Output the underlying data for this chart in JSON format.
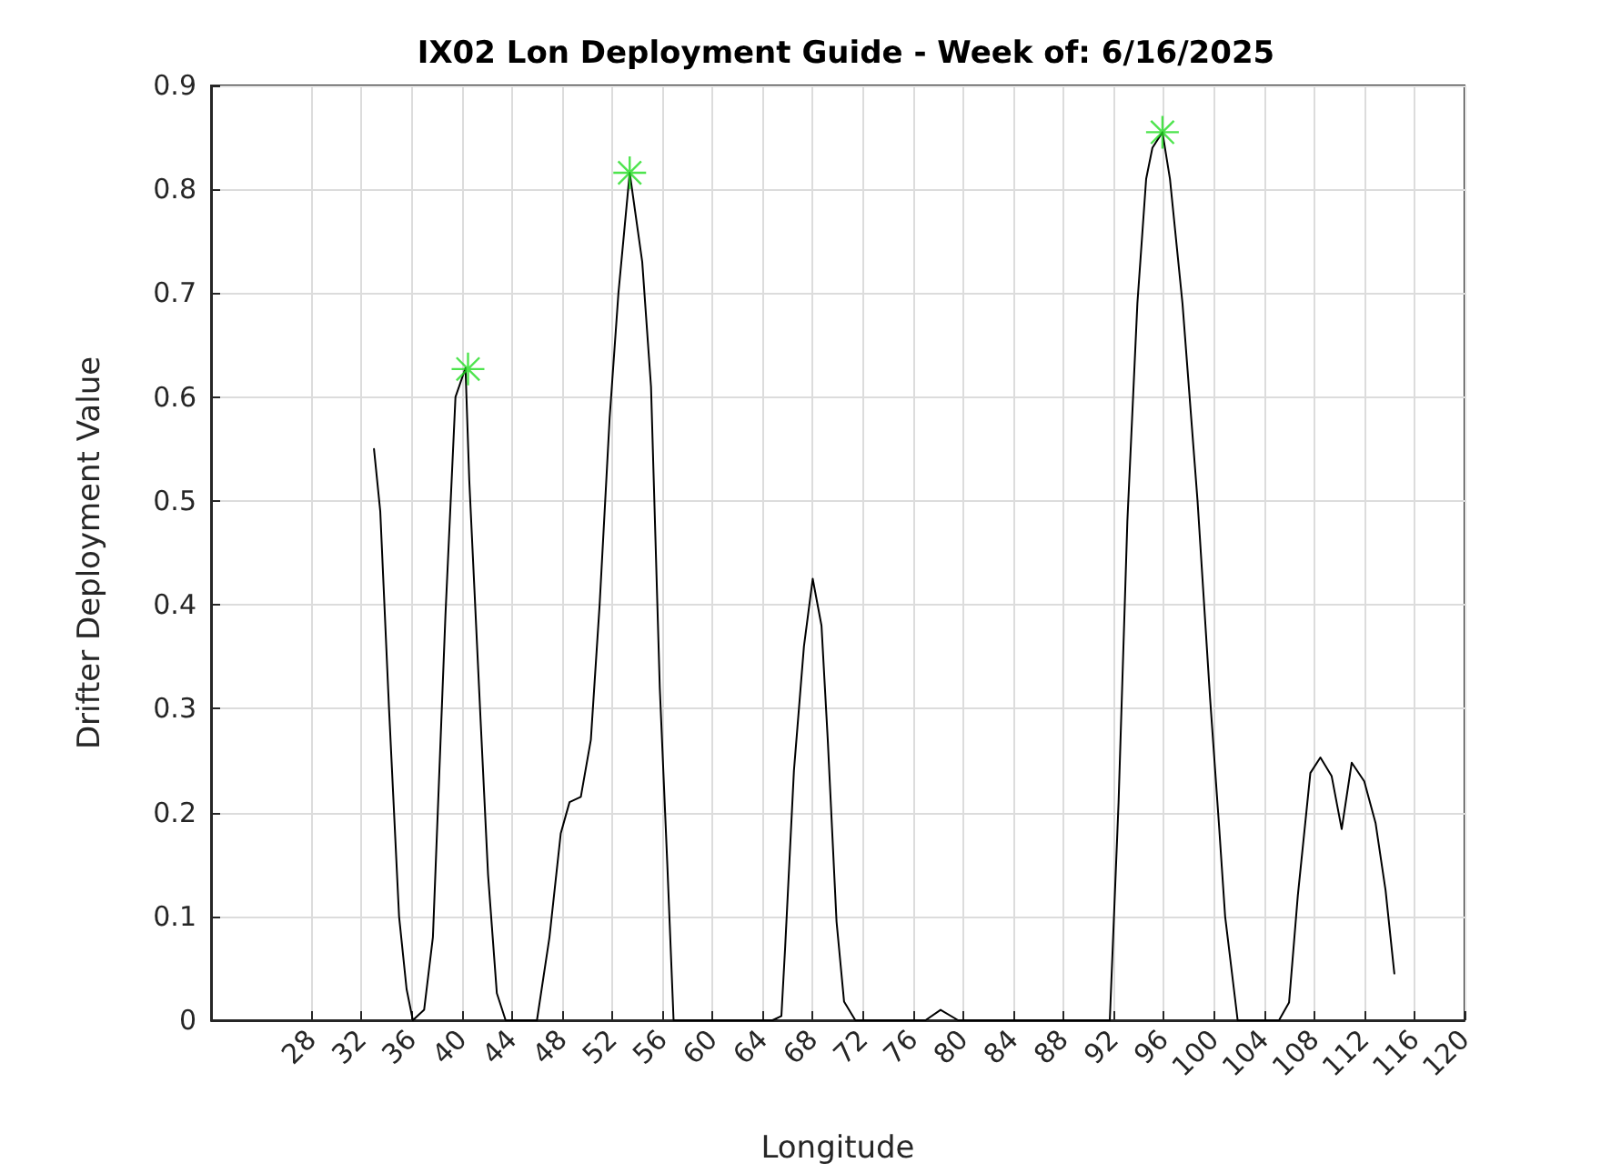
{
  "chart_data": {
    "type": "line",
    "title": "IX02 Lon Deployment Guide - Week of: 6/16/2025",
    "xlabel": "Longitude",
    "ylabel": "Drifter Deployment Value",
    "xlim": [
      20,
      120
    ],
    "xticks": [
      28,
      32,
      36,
      40,
      44,
      48,
      52,
      56,
      60,
      64,
      68,
      72,
      76,
      80,
      84,
      88,
      92,
      96,
      100,
      104,
      108,
      112,
      116,
      120
    ],
    "ylim": [
      0,
      0.9
    ],
    "yticks": [
      0,
      0.1,
      0.2,
      0.3,
      0.4,
      0.5,
      0.6,
      0.7,
      0.8,
      0.9
    ],
    "grid": true,
    "series": [
      {
        "color": "#000000",
        "marker": "none",
        "x": [
          33.0,
          33.5,
          34.2,
          35.0,
          35.6,
          36.1,
          37.0,
          37.7,
          38.7,
          39.5,
          40.3,
          40.6,
          41.5,
          42.1,
          42.8,
          43.5,
          46.0,
          47.0,
          47.9,
          48.6,
          49.5,
          50.3,
          51.0,
          51.8,
          52.5,
          53.4,
          54.4,
          55.1,
          55.8,
          56.4,
          56.9,
          64.8,
          65.5,
          65.8,
          66.5,
          67.3,
          68.0,
          68.7,
          69.2,
          69.9,
          70.5,
          71.4,
          77.0,
          78.2,
          79.6,
          91.7,
          92.4,
          93.1,
          93.9,
          94.6,
          95.1,
          95.9,
          96.5,
          97.5,
          98.7,
          99.7,
          100.4,
          100.9,
          101.9,
          105.2,
          106.0,
          106.7,
          107.7,
          108.5,
          109.4,
          110.2,
          111.0,
          112.0,
          112.9,
          113.7,
          114.4
        ],
        "values": [
          0.55,
          0.49,
          0.3,
          0.1,
          0.03,
          0,
          0.01,
          0.08,
          0.39,
          0.6,
          0.628,
          0.52,
          0.29,
          0.14,
          0.026,
          0,
          0,
          0.08,
          0.18,
          0.21,
          0.215,
          0.27,
          0.4,
          0.58,
          0.7,
          0.816,
          0.73,
          0.61,
          0.32,
          0.15,
          0,
          0,
          0.004,
          0.07,
          0.24,
          0.36,
          0.425,
          0.38,
          0.27,
          0.095,
          0.018,
          0,
          0,
          0.01,
          0,
          0,
          0.21,
          0.48,
          0.69,
          0.81,
          0.84,
          0.855,
          0.81,
          0.69,
          0.5,
          0.31,
          0.19,
          0.1,
          0,
          0,
          0.017,
          0.12,
          0.238,
          0.253,
          0.235,
          0.184,
          0.248,
          0.23,
          0.19,
          0.125,
          0.045
        ]
      },
      {
        "type": "scatter",
        "color": "#22dd22",
        "marker": "cross",
        "x": [
          40.5,
          53.4,
          95.9
        ],
        "values": [
          0.627,
          0.816,
          0.855
        ]
      }
    ]
  }
}
